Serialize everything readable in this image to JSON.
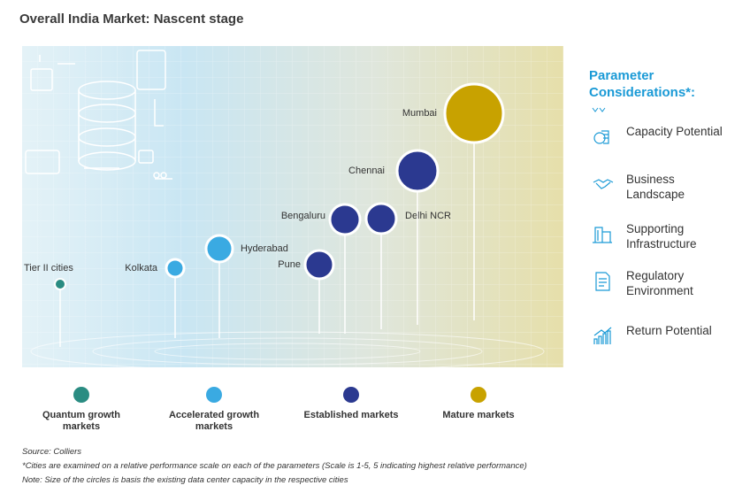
{
  "title": "Overall India Market: Nascent stage",
  "legend": [
    {
      "label": "Quantum growth markets",
      "color": "#2a8c82"
    },
    {
      "label": "Accelerated growth markets",
      "color": "#3aaae2"
    },
    {
      "label": "Established markets",
      "color": "#2b3990"
    },
    {
      "label": "Mature markets",
      "color": "#c8a200"
    }
  ],
  "nodes": [
    {
      "label": "Tier II cities",
      "group": 0
    },
    {
      "label": "Kolkata",
      "group": 1
    },
    {
      "label": "Hyderabad",
      "group": 1
    },
    {
      "label": "Pune",
      "group": 2
    },
    {
      "label": "Bengaluru",
      "group": 2
    },
    {
      "label": "Delhi NCR",
      "group": 2
    },
    {
      "label": "Chennai",
      "group": 2
    },
    {
      "label": "Mumbai",
      "group": 3
    }
  ],
  "parameters": {
    "heading": "Parameter Considerations*:",
    "items": [
      "Capacity Potential",
      "Business Landscape",
      "Supporting Infrastructure",
      "Regulatory Environment",
      "Return Potential"
    ]
  },
  "notes": [
    "Source: Colliers",
    "*Cities are examined on a relative performance scale on each of the parameters (Scale is 1-5, 5 indicating highest relative performance)",
    "Note: Size of the circles is basis the existing data center capacity in the respective cities"
  ]
}
